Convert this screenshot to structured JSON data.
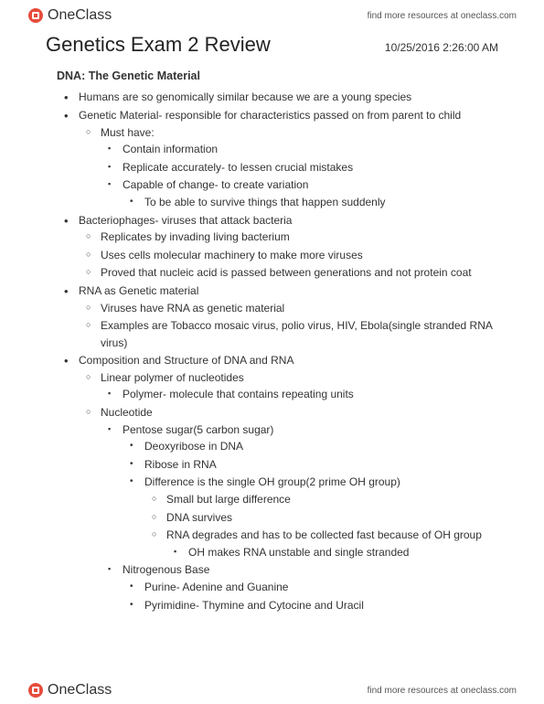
{
  "brand": {
    "name": "OneClass",
    "tagline": "find more resources at oneclass.com",
    "icon_color_outer": "#e74c3c",
    "icon_color_inner": "#ffffff"
  },
  "doc": {
    "title": "Genetics Exam 2 Review",
    "timestamp": "10/25/2016 2:26:00 AM",
    "section_heading": "DNA: The Genetic Material"
  },
  "outline": [
    {
      "lvl": 1,
      "text": "Humans are so genomically similar because we are a young species"
    },
    {
      "lvl": 1,
      "text": "Genetic Material- responsible for characteristics passed on from parent to child"
    },
    {
      "lvl": 2,
      "text": "Must have:"
    },
    {
      "lvl": 3,
      "text": "Contain information"
    },
    {
      "lvl": 3,
      "text": "Replicate accurately- to lessen crucial mistakes"
    },
    {
      "lvl": 3,
      "text": "Capable of change- to create variation"
    },
    {
      "lvl": 4,
      "text": "To be able to survive things that happen suddenly"
    },
    {
      "lvl": 1,
      "text": "Bacteriophages- viruses that attack bacteria"
    },
    {
      "lvl": 2,
      "text": "Replicates by invading living bacterium"
    },
    {
      "lvl": 2,
      "text": "Uses cells molecular machinery to make more viruses"
    },
    {
      "lvl": 2,
      "text": "Proved that nucleic acid is passed between generations and not protein coat"
    },
    {
      "lvl": 1,
      "text": "RNA as Genetic material"
    },
    {
      "lvl": 2,
      "text": "Viruses have RNA as genetic material"
    },
    {
      "lvl": 2,
      "text": "Examples are Tobacco mosaic virus, polio virus, HIV, Ebola(single stranded RNA virus)"
    },
    {
      "lvl": 1,
      "text": "Composition and Structure of DNA and RNA"
    },
    {
      "lvl": 2,
      "text": "Linear polymer of nucleotides"
    },
    {
      "lvl": 3,
      "text": "Polymer- molecule that contains repeating units"
    },
    {
      "lvl": 2,
      "text": "Nucleotide"
    },
    {
      "lvl": 3,
      "text": "Pentose sugar(5 carbon sugar)"
    },
    {
      "lvl": 4,
      "text": "Deoxyribose in DNA"
    },
    {
      "lvl": 4,
      "text": "Ribose in RNA"
    },
    {
      "lvl": 4,
      "text": "Difference is the single OH group(2 prime OH group)"
    },
    {
      "lvl": 5,
      "text": "Small but large difference"
    },
    {
      "lvl": 5,
      "text": "DNA survives"
    },
    {
      "lvl": 5,
      "text": "RNA degrades and has to be collected fast because of OH group"
    },
    {
      "lvl": 6,
      "text": "OH makes RNA unstable and single stranded"
    },
    {
      "lvl": 3,
      "text": "Nitrogenous Base"
    },
    {
      "lvl": 4,
      "text": "Purine- Adenine and Guanine"
    },
    {
      "lvl": 4,
      "text": "Pyrimidine- Thymine and Cytocine and Uracil"
    }
  ]
}
